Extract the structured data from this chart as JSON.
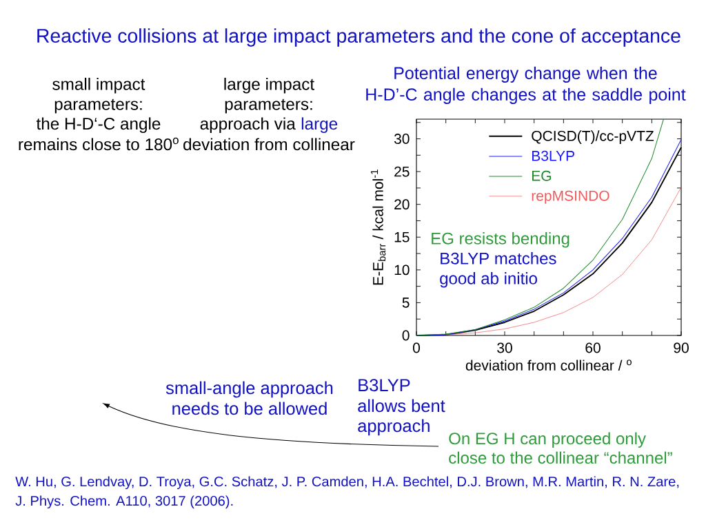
{
  "chart_data": {
    "type": "line",
    "title": "Reactive collisions at large impact parameters and the cone of acceptance",
    "subtitle": "Potential energy change when the H-D’-C angle changes at the saddle point",
    "xlabel": "deviation from collinear / $^{o}$",
    "ylabel": "E-E$_{barr}$ / kcal mol$^{-1}$",
    "x": [
      0,
      10,
      20,
      30,
      40,
      50,
      60,
      70,
      80,
      90
    ],
    "series": [
      {
        "name": "QCISD(T)/cc-pVTZ",
        "color": "#000000",
        "values": [
          0,
          0.1,
          0.8,
          2.0,
          3.7,
          6.2,
          9.4,
          14.1,
          20.3,
          28.7
        ]
      },
      {
        "name": "B3LYP",
        "color": "#1a1aff",
        "values": [
          0,
          0.1,
          0.9,
          2.2,
          4.0,
          6.5,
          10.0,
          14.8,
          21.1,
          29.9
        ]
      },
      {
        "name": "EG",
        "color": "#1f8a2a",
        "x": [
          0,
          10,
          20,
          30,
          40,
          50,
          60,
          70,
          80,
          84
        ],
        "values": [
          0,
          0.2,
          0.9,
          2.4,
          4.3,
          7.2,
          11.5,
          17.7,
          27.0,
          33
        ]
      },
      {
        "name": "repMSINDO",
        "color": "#ee5a5a",
        "values": [
          null,
          0.1,
          0.4,
          1.0,
          2.0,
          3.5,
          5.8,
          9.3,
          14.6,
          22.6
        ]
      }
    ],
    "xlim": [
      0,
      90
    ],
    "xticks": [
      0,
      {
        "value": 10,
        "label": null
      },
      {
        "value": 20,
        "label": null
      },
      30,
      {
        "value": 40,
        "label": null
      },
      {
        "value": 50,
        "label": null
      },
      60,
      {
        "value": 70,
        "label": null
      },
      {
        "value": 80,
        "label": null
      },
      90
    ],
    "ylim": [
      0,
      33
    ],
    "yticks": [
      0,
      {
        "value": 2.5,
        "label": null
      },
      5,
      {
        "value": 7.5,
        "label": null
      },
      10,
      {
        "value": 12.5,
        "label": null
      },
      15,
      {
        "value": 17.5,
        "label": null
      },
      20,
      {
        "value": 22.5,
        "label": null
      },
      25,
      {
        "value": 27.5,
        "label": null
      },
      30,
      {
        "value": 32.5,
        "label": null
      }
    ],
    "legend": "top right",
    "annotations": [
      "small impact",
      "parameters:",
      "the H-D‘-C angle",
      "remains close to 180$^{o}$",
      "large impact",
      "parameters:",
      "approach via",
      "large",
      "deviation from collinear",
      "EG resists bending",
      "B3LYP matches",
      "good ab initio",
      "small-angle approach",
      "needs to be allowed",
      "B3LYP",
      "allows bent",
      "approach",
      "On EG H can proceed only",
      "close to the collinear “channel”",
      "W. Hu, G. Lendvay, D. Troya, G.C. Schatz, J. P. Camden, H.A. Bechtel, D.J. Brown, M.R. Martin, R. N. Zare,",
      "J. Phys. Chem. A110, 3017 (2006)."
    ]
  }
}
